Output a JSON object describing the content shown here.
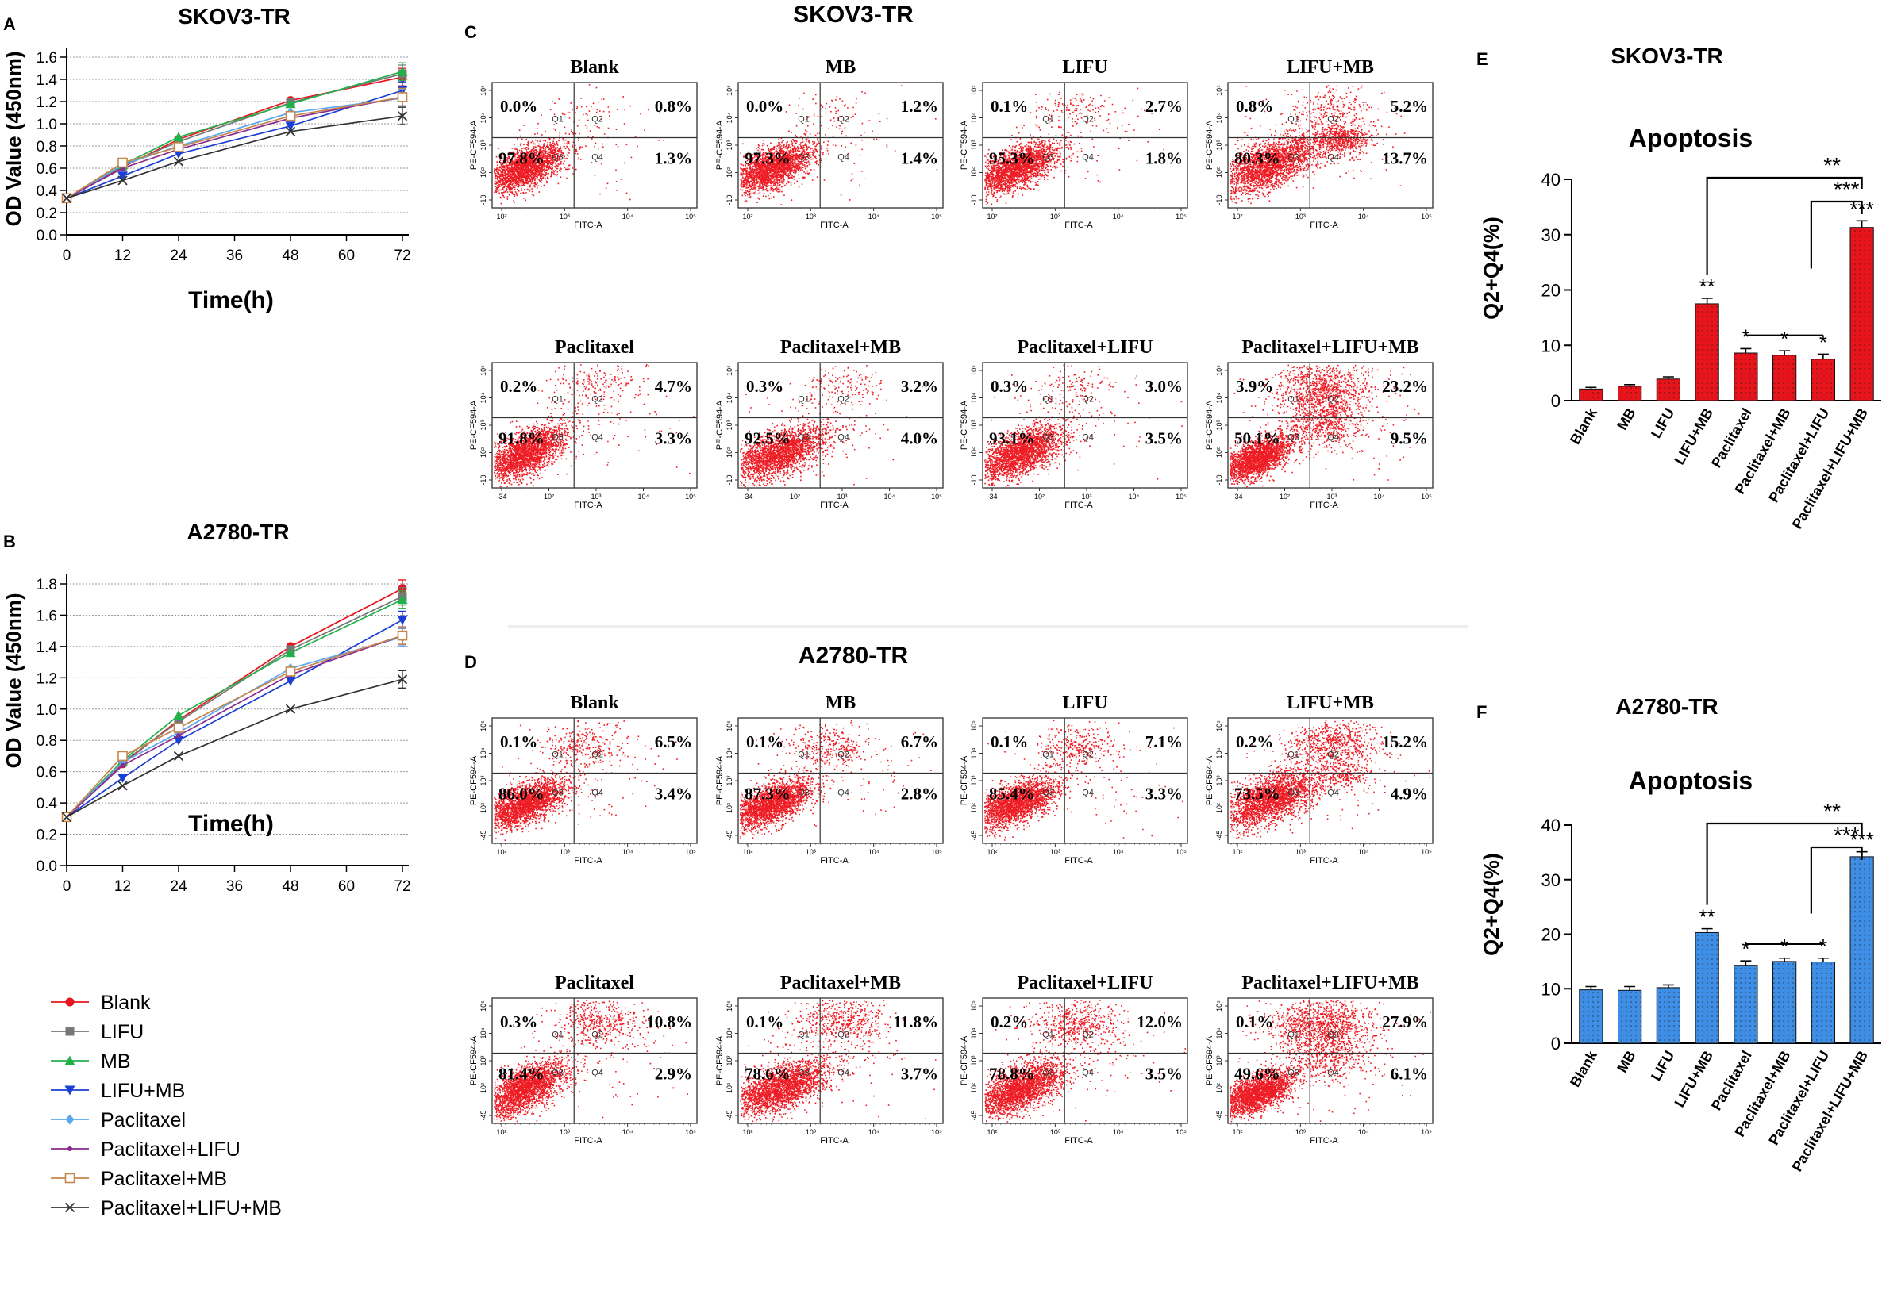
{
  "colors": {
    "bar_red": "#e8141b",
    "bar_blue": "#3e8ee6",
    "dot_red": "#ee1c24",
    "grid": "#9a9a9a"
  },
  "panel_labels": {
    "A": "A",
    "B": "B",
    "C": "C",
    "D": "D",
    "E": "E",
    "F": "F"
  },
  "legend": {
    "items": [
      {
        "label": "Blank",
        "color": "#e8141b",
        "marker": "circle"
      },
      {
        "label": "LIFU",
        "color": "#777777",
        "marker": "square"
      },
      {
        "label": "MB",
        "color": "#22b04b",
        "marker": "triangle"
      },
      {
        "label": "LIFU+MB",
        "color": "#1a3fd6",
        "marker": "triangle-down"
      },
      {
        "label": "Paclitaxel",
        "color": "#5aa8f0",
        "marker": "diamond"
      },
      {
        "label": "Paclitaxel+LIFU",
        "color": "#8a2b8f",
        "marker": "dot"
      },
      {
        "label": "Paclitaxel+MB",
        "color": "#c8864a",
        "marker": "open-square"
      },
      {
        "label": "Paclitaxel+LIFU+MB",
        "color": "#333333",
        "marker": "x"
      }
    ]
  },
  "flow": {
    "C": {
      "title": "SKOV3-TR",
      "ylabel": "PE-CF594-A",
      "xlabel": "FITC-A",
      "quad_labels": [
        "Q1",
        "Q2",
        "Q3",
        "Q4"
      ],
      "row1_x_ticks": [
        "10²",
        "10³",
        "10⁴",
        "10⁵"
      ],
      "row2_x_ticks": [
        "-34",
        "10²",
        "10³",
        "10⁴",
        "10⁵"
      ],
      "y_ticks": [
        "10⁵",
        "10⁴",
        "10³",
        "10²",
        "-10"
      ],
      "plots": [
        {
          "name": "Blank",
          "q1": "0.0%",
          "q2": "0.8%",
          "q3": "97.8%",
          "q4": "1.3%"
        },
        {
          "name": "MB",
          "q1": "0.0%",
          "q2": "1.2%",
          "q3": "97.3%",
          "q4": "1.4%"
        },
        {
          "name": "LIFU",
          "q1": "0.1%",
          "q2": "2.7%",
          "q3": "95.3%",
          "q4": "1.8%"
        },
        {
          "name": "LIFU+MB",
          "q1": "0.8%",
          "q2": "5.2%",
          "q3": "80.3%",
          "q4": "13.7%"
        },
        {
          "name": "Paclitaxel",
          "q1": "0.2%",
          "q2": "4.7%",
          "q3": "91.8%",
          "q4": "3.3%"
        },
        {
          "name": "Paclitaxel+MB",
          "q1": "0.3%",
          "q2": "3.2%",
          "q3": "92.5%",
          "q4": "4.0%"
        },
        {
          "name": "Paclitaxel+LIFU",
          "q1": "0.3%",
          "q2": "3.0%",
          "q3": "93.1%",
          "q4": "3.5%"
        },
        {
          "name": "Paclitaxel+LIFU+MB",
          "q1": "3.9%",
          "q2": "23.2%",
          "q3": "50.1%",
          "q4": "9.5%"
        }
      ]
    },
    "D": {
      "title": "A2780-TR",
      "ylabel": "PE-CF594-A",
      "xlabel": "FITC-A",
      "quad_labels": [
        "Q1",
        "Q2",
        "Q3",
        "Q4"
      ],
      "row1_x_ticks": [
        "10²",
        "10³",
        "10⁴",
        "10⁵"
      ],
      "row2_x_ticks": [
        "10²",
        "10³",
        "10⁴",
        "10⁵"
      ],
      "y_ticks": [
        "10⁵",
        "10⁴",
        "10³",
        "10²",
        "-45"
      ],
      "plots": [
        {
          "name": "Blank",
          "q1": "0.1%",
          "q2": "6.5%",
          "q3": "86.0%",
          "q4": "3.4%"
        },
        {
          "name": "MB",
          "q1": "0.1%",
          "q2": "6.7%",
          "q3": "87.3%",
          "q4": "2.8%"
        },
        {
          "name": "LIFU",
          "q1": "0.1%",
          "q2": "7.1%",
          "q3": "85.4%",
          "q4": "3.3%"
        },
        {
          "name": "LIFU+MB",
          "q1": "0.2%",
          "q2": "15.2%",
          "q3": "73.5%",
          "q4": "4.9%"
        },
        {
          "name": "Paclitaxel",
          "q1": "0.3%",
          "q2": "10.8%",
          "q3": "81.4%",
          "q4": "2.9%"
        },
        {
          "name": "Paclitaxel+MB",
          "q1": "0.1%",
          "q2": "11.8%",
          "q3": "78.6%",
          "q4": "3.7%"
        },
        {
          "name": "Paclitaxel+LIFU",
          "q1": "0.2%",
          "q2": "12.0%",
          "q3": "78.8%",
          "q4": "3.5%"
        },
        {
          "name": "Paclitaxel+LIFU+MB",
          "q1": "0.1%",
          "q2": "27.9%",
          "q3": "49.6%",
          "q4": "6.1%"
        }
      ]
    }
  },
  "chart_data": [
    {
      "panel": "A",
      "type": "line",
      "title": "SKOV3-TR",
      "xlabel": "Time(h)",
      "ylabel": "OD Value (450nm)",
      "x": [
        0,
        12,
        24,
        48,
        72
      ],
      "xlim": [
        0,
        72
      ],
      "ylim": [
        0,
        1.6
      ],
      "xticks": [
        0,
        12,
        24,
        36,
        48,
        60,
        72
      ],
      "yticks": [
        0.0,
        0.2,
        0.4,
        0.6,
        0.8,
        1.0,
        1.2,
        1.4,
        1.6
      ],
      "ytick_labels": [
        "0.0",
        "0.2",
        "0.4",
        "0.6",
        "0.8",
        "1.0",
        "1.2",
        "1.4",
        "1.6"
      ],
      "grid": true,
      "series": [
        {
          "name": "Blank",
          "values": [
            0.33,
            0.61,
            0.86,
            1.21,
            1.42
          ]
        },
        {
          "name": "LIFU",
          "values": [
            0.33,
            0.62,
            0.84,
            1.19,
            1.45
          ]
        },
        {
          "name": "MB",
          "values": [
            0.33,
            0.63,
            0.88,
            1.18,
            1.47
          ]
        },
        {
          "name": "LIFU+MB",
          "values": [
            0.33,
            0.53,
            0.73,
            0.98,
            1.3
          ]
        },
        {
          "name": "Paclitaxel",
          "values": [
            0.33,
            0.63,
            0.8,
            1.1,
            1.23
          ]
        },
        {
          "name": "Paclitaxel+LIFU",
          "values": [
            0.33,
            0.6,
            0.77,
            1.05,
            1.24
          ]
        },
        {
          "name": "Paclitaxel+MB",
          "values": [
            0.33,
            0.65,
            0.79,
            1.07,
            1.24
          ]
        },
        {
          "name": "Paclitaxel+LIFU+MB",
          "values": [
            0.33,
            0.49,
            0.66,
            0.93,
            1.07
          ]
        }
      ]
    },
    {
      "panel": "B",
      "type": "line",
      "title": "A2780-TR",
      "xlabel": "Time(h)",
      "ylabel": "OD Value (450nm)",
      "x": [
        0,
        12,
        24,
        48,
        72
      ],
      "xlim": [
        0,
        72
      ],
      "ylim": [
        0,
        1.8
      ],
      "xticks": [
        0,
        12,
        24,
        36,
        48,
        60,
        72
      ],
      "yticks": [
        0.0,
        0.2,
        0.4,
        0.6,
        0.8,
        1.0,
        1.2,
        1.4,
        1.6,
        1.8
      ],
      "ytick_labels": [
        "0.0",
        "0.2",
        "0.4",
        "0.6",
        "0.8",
        "1.0",
        "1.2",
        "1.4",
        "1.6",
        "1.8"
      ],
      "grid": true,
      "series": [
        {
          "name": "Blank",
          "values": [
            0.31,
            0.65,
            0.93,
            1.4,
            1.77
          ]
        },
        {
          "name": "LIFU",
          "values": [
            0.31,
            0.66,
            0.92,
            1.38,
            1.72
          ]
        },
        {
          "name": "MB",
          "values": [
            0.31,
            0.67,
            0.96,
            1.36,
            1.7
          ]
        },
        {
          "name": "LIFU+MB",
          "values": [
            0.31,
            0.56,
            0.8,
            1.18,
            1.57
          ]
        },
        {
          "name": "Paclitaxel",
          "values": [
            0.31,
            0.66,
            0.85,
            1.26,
            1.46
          ]
        },
        {
          "name": "Paclitaxel+LIFU",
          "values": [
            0.31,
            0.64,
            0.83,
            1.22,
            1.47
          ]
        },
        {
          "name": "Paclitaxel+MB",
          "values": [
            0.31,
            0.7,
            0.88,
            1.24,
            1.47
          ]
        },
        {
          "name": "Paclitaxel+LIFU+MB",
          "values": [
            0.31,
            0.51,
            0.7,
            1.0,
            1.19
          ]
        }
      ]
    },
    {
      "panel": "E",
      "type": "bar",
      "title": "SKOV3-TR",
      "subtitle": "Apoptosis",
      "ylabel": "Q2+Q4(%)",
      "ylim": [
        0,
        40
      ],
      "yticks": [
        0,
        10,
        20,
        30,
        40
      ],
      "categories": [
        "Blank",
        "MB",
        "LIFU",
        "LIFU+MB",
        "Paclitaxel",
        "Paclitaxel+MB",
        "Paclitaxel+LIFU",
        "Paclitaxel+LIFU+MB"
      ],
      "values": [
        2.1,
        2.6,
        3.9,
        17.5,
        8.6,
        8.2,
        7.5,
        31.3
      ],
      "errors": [
        0.3,
        0.3,
        0.4,
        1.0,
        0.8,
        0.8,
        0.9,
        1.2
      ],
      "significance": [
        "",
        "",
        "",
        "**",
        "*",
        "*",
        "*",
        "***"
      ],
      "brackets": [
        {
          "from": "LIFU+MB",
          "to": "Paclitaxel+LIFU+MB",
          "label": "**"
        },
        {
          "from": "Paclitaxel+LIFU",
          "to": "Paclitaxel+LIFU+MB",
          "label": "***"
        }
      ]
    },
    {
      "panel": "F",
      "type": "bar",
      "title": "A2780-TR",
      "subtitle": "Apoptosis",
      "ylabel": "Q2+Q4(%)",
      "ylim": [
        0,
        40
      ],
      "yticks": [
        0,
        10,
        20,
        30,
        40
      ],
      "categories": [
        "Blank",
        "MB",
        "LIFU",
        "LIFU+MB",
        "Paclitaxel",
        "Paclitaxel+MB",
        "Paclitaxel+LIFU",
        "Paclitaxel+LIFU+MB"
      ],
      "values": [
        9.8,
        9.7,
        10.2,
        20.3,
        14.3,
        15.0,
        14.9,
        34.2
      ],
      "errors": [
        0.6,
        0.7,
        0.5,
        0.7,
        0.8,
        0.6,
        0.7,
        0.9
      ],
      "significance": [
        "",
        "",
        "",
        "**",
        "*",
        "*",
        "*",
        "***"
      ],
      "brackets": [
        {
          "from": "LIFU+MB",
          "to": "Paclitaxel+LIFU+MB",
          "label": "**"
        },
        {
          "from": "Paclitaxel+LIFU",
          "to": "Paclitaxel+LIFU+MB",
          "label": "***"
        }
      ]
    }
  ]
}
